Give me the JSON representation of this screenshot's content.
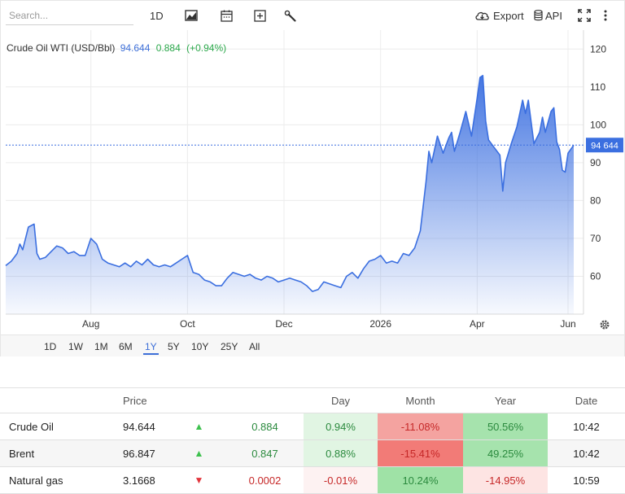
{
  "toolbar": {
    "search_placeholder": "Search...",
    "interval": "1D",
    "export": "Export",
    "api": "API"
  },
  "legend": {
    "name": "Crude Oil WTI (USD/Bbl)",
    "value": "94.644",
    "change": "0.884",
    "change_pct": "(+0.94%)"
  },
  "price_marker": "94 644",
  "colors": {
    "line": "#3b6fe0",
    "up": "#3ec14e",
    "down": "#e2353c"
  },
  "chart_data": {
    "type": "area",
    "title": "Crude Oil WTI (USD/Bbl)",
    "xlabel": "",
    "ylabel": "",
    "ylim": [
      50,
      125
    ],
    "yticks": [
      60,
      70,
      80,
      90,
      100,
      110,
      120
    ],
    "xticks": [
      {
        "label": "Aug",
        "t": 0.15
      },
      {
        "label": "Oct",
        "t": 0.32
      },
      {
        "label": "Dec",
        "t": 0.49
      },
      {
        "label": "2026",
        "t": 0.66
      },
      {
        "label": "Apr",
        "t": 0.83
      },
      {
        "label": "Jun",
        "t": 0.99
      }
    ],
    "grid": true,
    "series": [
      {
        "name": "Crude Oil WTI",
        "points": [
          [
            0.0,
            62.8
          ],
          [
            0.01,
            64.0
          ],
          [
            0.02,
            66.0
          ],
          [
            0.025,
            68.5
          ],
          [
            0.03,
            67.0
          ],
          [
            0.04,
            73.0
          ],
          [
            0.05,
            73.8
          ],
          [
            0.055,
            66.0
          ],
          [
            0.06,
            64.5
          ],
          [
            0.07,
            65.0
          ],
          [
            0.08,
            66.5
          ],
          [
            0.09,
            68.0
          ],
          [
            0.1,
            67.5
          ],
          [
            0.11,
            66.0
          ],
          [
            0.12,
            66.5
          ],
          [
            0.13,
            65.5
          ],
          [
            0.14,
            65.5
          ],
          [
            0.15,
            70.0
          ],
          [
            0.16,
            68.5
          ],
          [
            0.17,
            64.5
          ],
          [
            0.18,
            63.5
          ],
          [
            0.19,
            63.0
          ],
          [
            0.2,
            62.5
          ],
          [
            0.21,
            63.5
          ],
          [
            0.22,
            62.5
          ],
          [
            0.23,
            64.0
          ],
          [
            0.24,
            63.0
          ],
          [
            0.25,
            64.5
          ],
          [
            0.26,
            63.0
          ],
          [
            0.27,
            62.5
          ],
          [
            0.28,
            63.0
          ],
          [
            0.29,
            62.5
          ],
          [
            0.3,
            63.5
          ],
          [
            0.31,
            64.5
          ],
          [
            0.32,
            65.5
          ],
          [
            0.33,
            61.0
          ],
          [
            0.34,
            60.5
          ],
          [
            0.35,
            59.0
          ],
          [
            0.36,
            58.5
          ],
          [
            0.37,
            57.5
          ],
          [
            0.38,
            57.5
          ],
          [
            0.39,
            59.5
          ],
          [
            0.4,
            61.0
          ],
          [
            0.41,
            60.5
          ],
          [
            0.42,
            60.0
          ],
          [
            0.43,
            60.5
          ],
          [
            0.44,
            59.5
          ],
          [
            0.45,
            59.0
          ],
          [
            0.46,
            60.0
          ],
          [
            0.47,
            59.5
          ],
          [
            0.48,
            58.5
          ],
          [
            0.49,
            59.0
          ],
          [
            0.5,
            59.5
          ],
          [
            0.51,
            59.0
          ],
          [
            0.52,
            58.5
          ],
          [
            0.53,
            57.5
          ],
          [
            0.54,
            56.0
          ],
          [
            0.55,
            56.5
          ],
          [
            0.56,
            58.5
          ],
          [
            0.57,
            58.0
          ],
          [
            0.58,
            57.5
          ],
          [
            0.59,
            57.0
          ],
          [
            0.6,
            60.0
          ],
          [
            0.61,
            61.0
          ],
          [
            0.62,
            59.5
          ],
          [
            0.63,
            62.0
          ],
          [
            0.64,
            64.0
          ],
          [
            0.65,
            64.5
          ],
          [
            0.66,
            65.5
          ],
          [
            0.67,
            63.5
          ],
          [
            0.68,
            64.0
          ],
          [
            0.69,
            63.5
          ],
          [
            0.7,
            66.0
          ],
          [
            0.71,
            65.5
          ],
          [
            0.72,
            67.5
          ],
          [
            0.73,
            72.0
          ],
          [
            0.74,
            85.0
          ],
          [
            0.745,
            93.0
          ],
          [
            0.75,
            90.0
          ],
          [
            0.76,
            97.0
          ],
          [
            0.77,
            92.5
          ],
          [
            0.78,
            96.5
          ],
          [
            0.785,
            98.0
          ],
          [
            0.79,
            93.0
          ],
          [
            0.8,
            98.0
          ],
          [
            0.81,
            103.5
          ],
          [
            0.82,
            97.0
          ],
          [
            0.83,
            107.0
          ],
          [
            0.835,
            112.5
          ],
          [
            0.84,
            113.0
          ],
          [
            0.845,
            101.0
          ],
          [
            0.85,
            96.0
          ],
          [
            0.86,
            94.0
          ],
          [
            0.87,
            92.0
          ],
          [
            0.875,
            82.5
          ],
          [
            0.88,
            90.0
          ],
          [
            0.89,
            95.0
          ],
          [
            0.9,
            99.5
          ],
          [
            0.91,
            106.5
          ],
          [
            0.915,
            103.0
          ],
          [
            0.92,
            106.5
          ],
          [
            0.93,
            95.0
          ],
          [
            0.94,
            98.0
          ],
          [
            0.945,
            102.0
          ],
          [
            0.95,
            98.0
          ],
          [
            0.96,
            103.5
          ],
          [
            0.965,
            104.5
          ],
          [
            0.97,
            95.5
          ],
          [
            0.975,
            93.5
          ],
          [
            0.98,
            88.0
          ],
          [
            0.985,
            87.5
          ],
          [
            0.99,
            92.5
          ],
          [
            1.0,
            94.644
          ]
        ]
      }
    ]
  },
  "ranges": [
    "1D",
    "1W",
    "1M",
    "6M",
    "1Y",
    "5Y",
    "10Y",
    "25Y",
    "All"
  ],
  "active_range": "1Y",
  "table": {
    "headers": [
      "",
      "Price",
      "",
      "",
      "Day",
      "Month",
      "Year",
      "Date"
    ],
    "rows": [
      {
        "name": "Crude Oil",
        "price": "94.644",
        "dir": "up",
        "change": "0.884",
        "day": "0.94%",
        "month": "-11.08%",
        "year": "50.56%",
        "date": "10:42",
        "day_bg": "#e1f5e3",
        "month_bg": "#f4a3a0",
        "year_bg": "#a6e3ad"
      },
      {
        "name": "Brent",
        "price": "96.847",
        "dir": "up",
        "change": "0.847",
        "day": "0.88%",
        "month": "-15.41%",
        "year": "49.25%",
        "date": "10:42",
        "day_bg": "#e1f5e3",
        "month_bg": "#f27b77",
        "year_bg": "#a6e3ad"
      },
      {
        "name": "Natural gas",
        "price": "3.1668",
        "dir": "down",
        "change": "0.0002",
        "day": "-0.01%",
        "month": "10.24%",
        "year": "-14.95%",
        "date": "10:59",
        "day_bg": "#fdf2f2",
        "month_bg": "#9fe2a6",
        "year_bg": "#fde4e3"
      }
    ]
  }
}
